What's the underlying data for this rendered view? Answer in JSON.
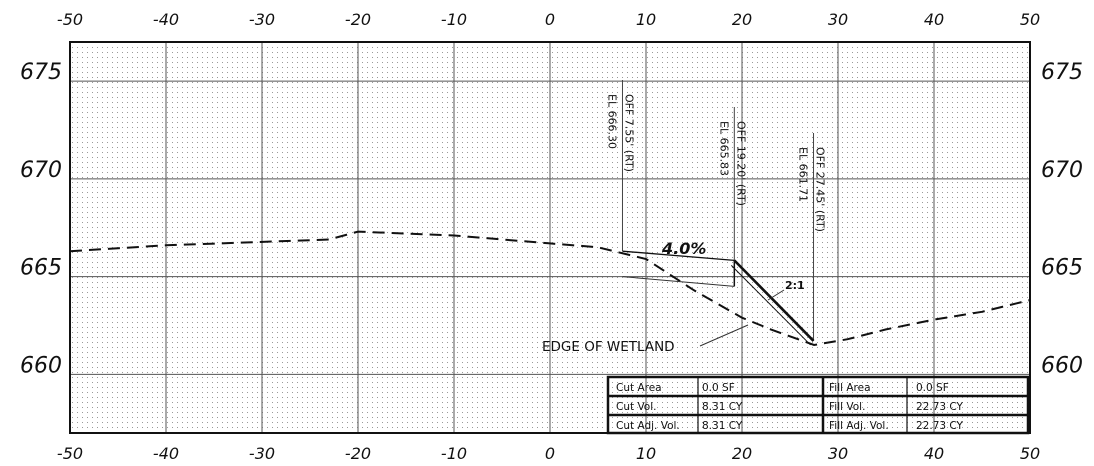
{
  "section": {
    "offset_ticks": [
      -50,
      -40,
      -30,
      -20,
      -10,
      0,
      10,
      20,
      30,
      40,
      50
    ],
    "offset_tick_labels": [
      "-50",
      "-40",
      "-30",
      "-20",
      "-10",
      "0",
      "10",
      "20",
      "30",
      "40",
      "50"
    ],
    "elevation_range": [
      657,
      677
    ],
    "elevation_ticks": [
      660,
      665,
      670,
      675
    ],
    "elevation_tick_labels": [
      "660",
      "665",
      "670",
      "675"
    ],
    "existing_ground": [
      [
        -50,
        666.3
      ],
      [
        -40,
        666.6
      ],
      [
        -23,
        666.9
      ],
      [
        -20,
        667.3
      ],
      [
        -10,
        667.1
      ],
      [
        0,
        666.7
      ],
      [
        5,
        666.5
      ],
      [
        10,
        665.9
      ],
      [
        15,
        664.3
      ],
      [
        20,
        662.9
      ],
      [
        23,
        662.3
      ],
      [
        27.5,
        661.5
      ],
      [
        31,
        661.8
      ],
      [
        35,
        662.3
      ],
      [
        40,
        662.8
      ],
      [
        45,
        663.2
      ],
      [
        50,
        663.8
      ]
    ],
    "proposed_grade": [
      [
        7.55,
        666.3
      ],
      [
        19.2,
        665.83
      ],
      [
        27.45,
        661.71
      ]
    ],
    "slope_label": "4.0%",
    "side_slope_label": "2:1",
    "wetland_label": "EDGE OF WETLAND",
    "callouts": [
      {
        "offset": 7.55,
        "elevation": 666.3,
        "offset_label": "OFF 7.55' (RT)",
        "elev_label": "EL 666.30"
      },
      {
        "offset": 19.2,
        "elevation": 665.83,
        "offset_label": "OFF 19.20' (RT)",
        "elev_label": "EL 665.83"
      },
      {
        "offset": 27.45,
        "elevation": 661.71,
        "offset_label": "OFF 27.45' (RT)",
        "elev_label": "EL 661.71"
      }
    ]
  },
  "quantities": {
    "rows": [
      {
        "cut_label": "Cut Area",
        "cut_value": "0.0 SF",
        "fill_label": "Fill Area",
        "fill_value": "0.0 SF"
      },
      {
        "cut_label": "Cut Vol.",
        "cut_value": "8.31 CY",
        "fill_label": "Fill Vol.",
        "fill_value": "22.73 CY"
      },
      {
        "cut_label": "Cut Adj. Vol.",
        "cut_value": "8.31 CY",
        "fill_label": "Fill Adj. Vol.",
        "fill_value": "22.73 CY"
      }
    ]
  }
}
